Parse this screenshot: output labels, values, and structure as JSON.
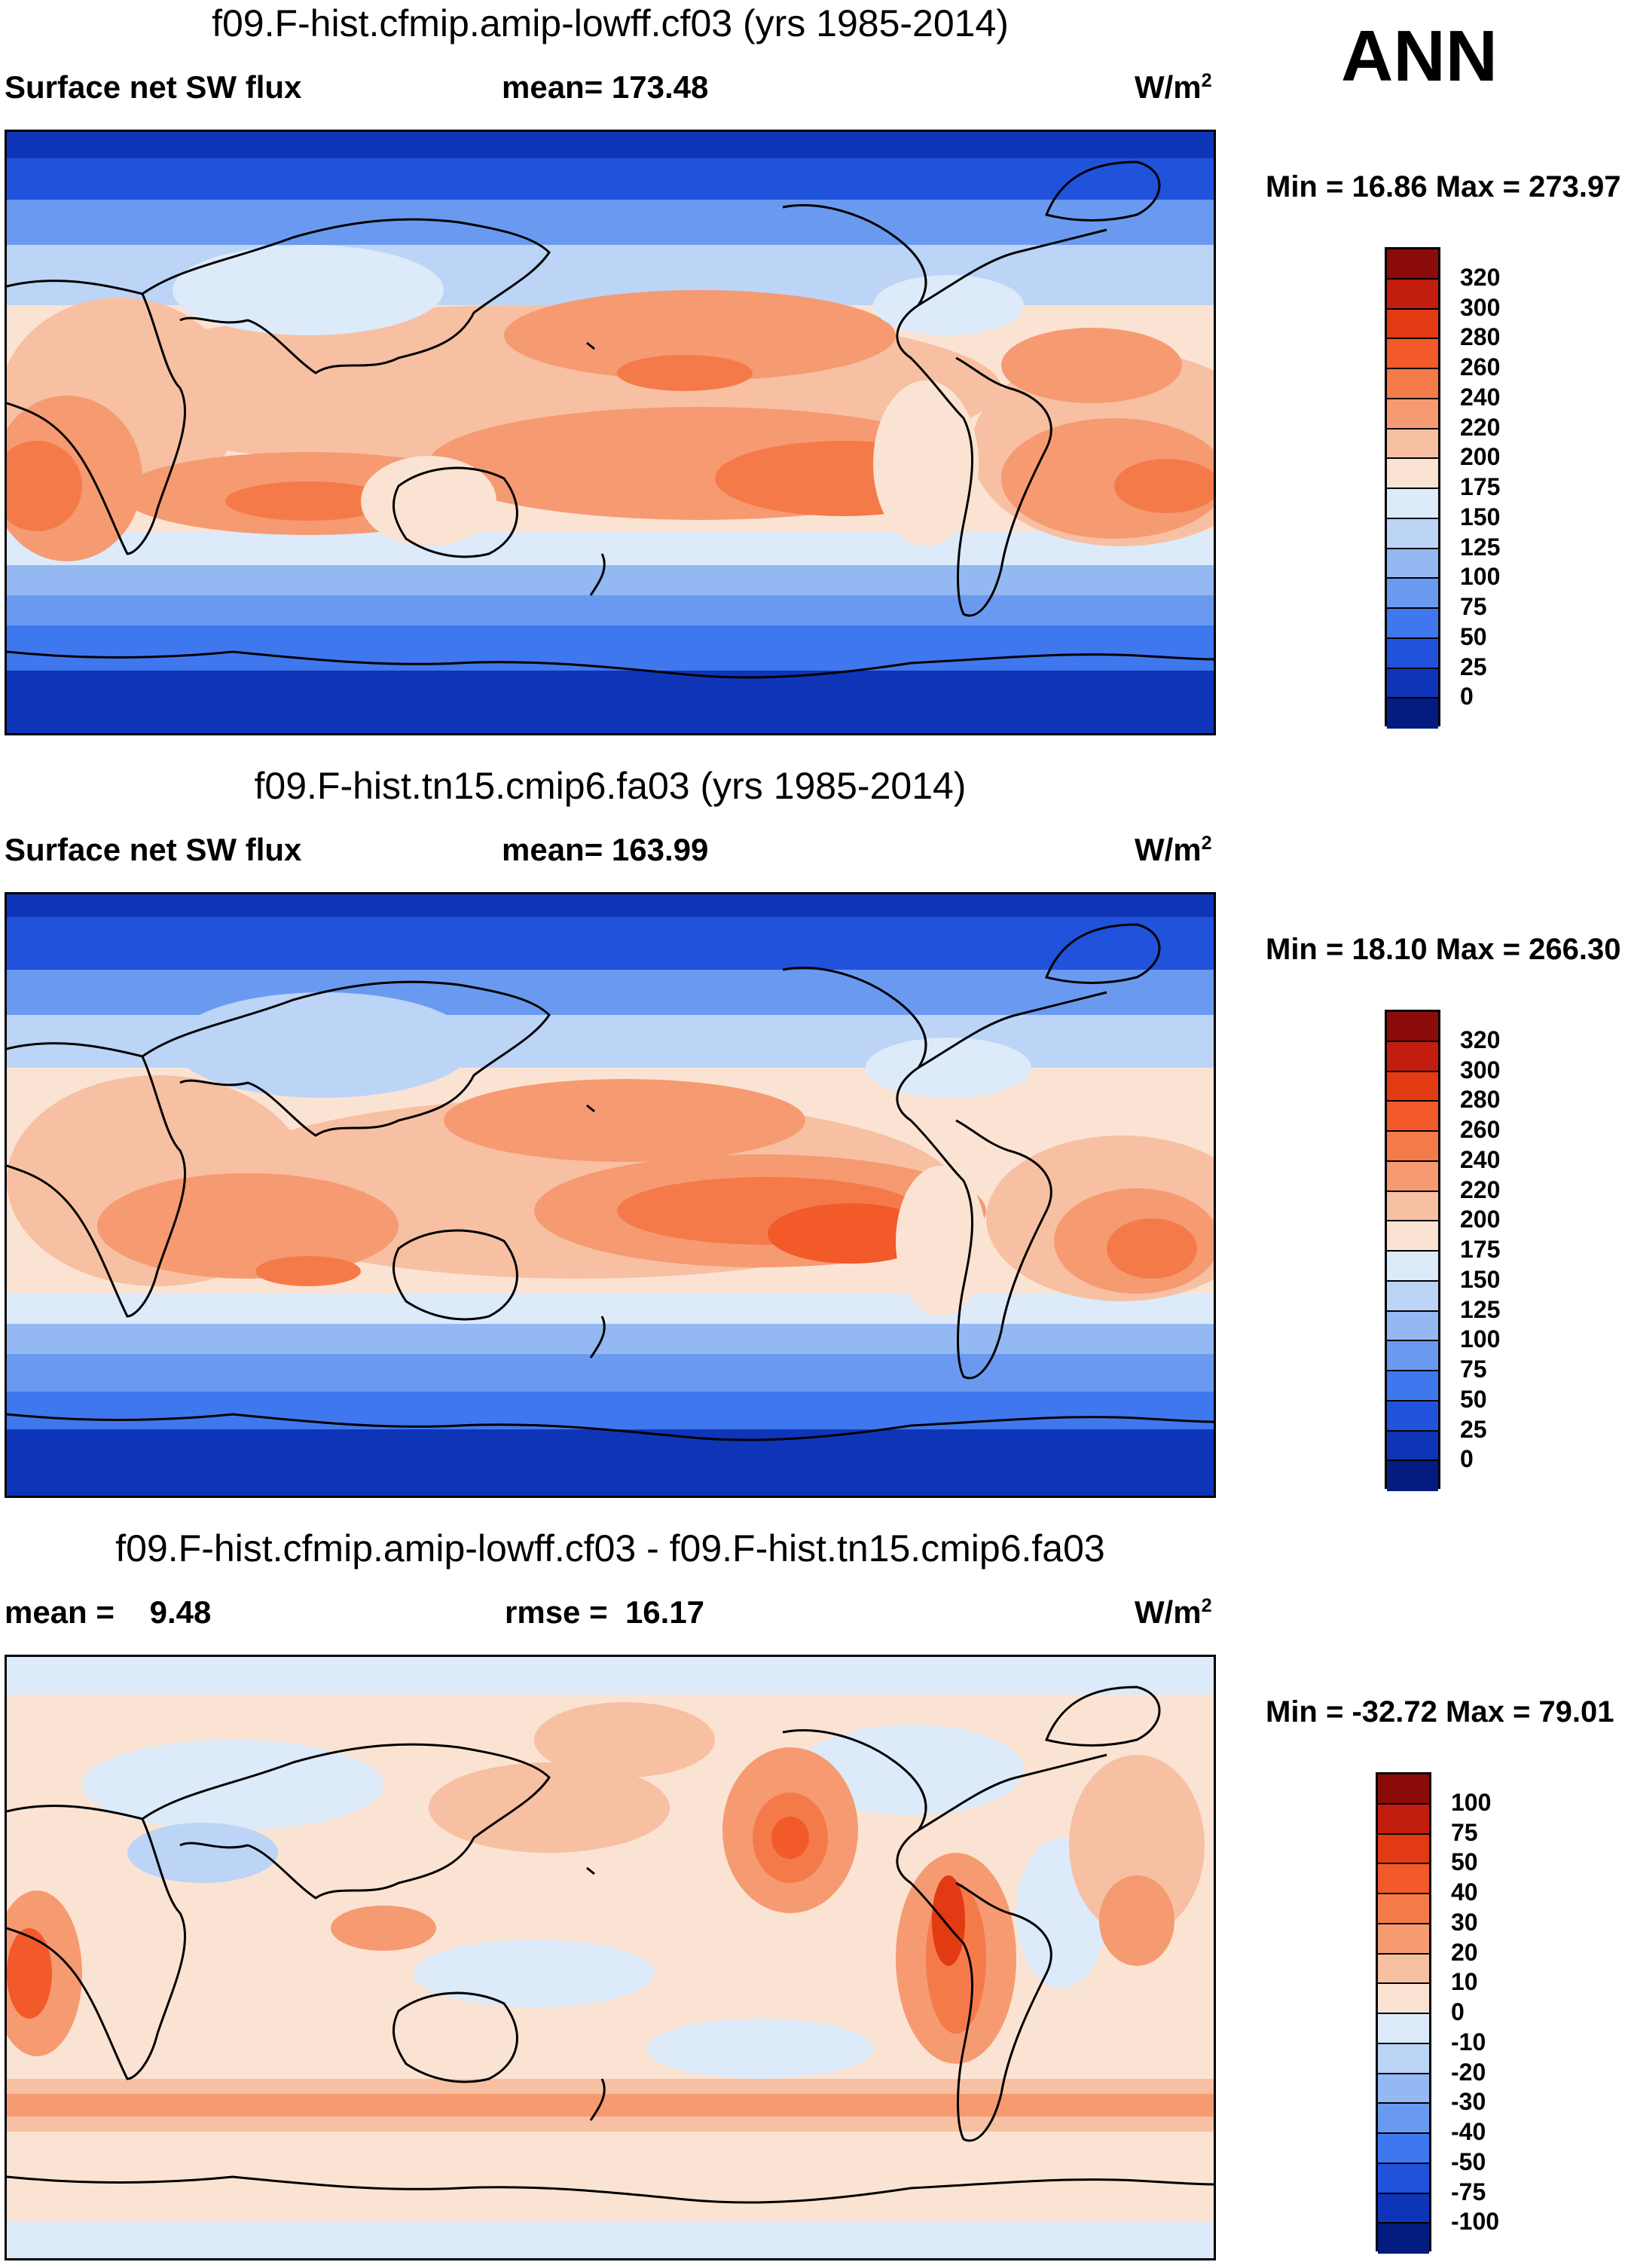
{
  "season": "ANN",
  "panels": [
    {
      "title": "f09.F-hist.cfmip.amip-lowff.cf03 (yrs 1985-2014)",
      "left_label": "Surface net SW flux",
      "center_label": "mean= 173.48",
      "units": "W/m",
      "units_exp": "2",
      "min_label": "Min =",
      "min_value": "16.86",
      "max_label": "Max =",
      "max_value": "273.97",
      "levels": [
        "320",
        "300",
        "280",
        "260",
        "240",
        "220",
        "200",
        "175",
        "150",
        "125",
        "100",
        "75",
        "50",
        "25",
        "0"
      ],
      "colors": [
        "#8b0a0a",
        "#c21d0e",
        "#e23a12",
        "#f25a2a",
        "#f57a4a",
        "#f69a72",
        "#f7c0a2",
        "#fbe3d3",
        "#dceafa",
        "#bcd4f6",
        "#94b8f2",
        "#6a9af0",
        "#3f78ee",
        "#2152dc",
        "#0e35b8",
        "#041c80"
      ]
    },
    {
      "title": "f09.F-hist.tn15.cmip6.fa03 (yrs 1985-2014)",
      "left_label": "Surface net SW flux",
      "center_label": "mean= 163.99",
      "units": "W/m",
      "units_exp": "2",
      "min_label": "Min =",
      "min_value": "18.10",
      "max_label": "Max =",
      "max_value": "266.30",
      "levels": [
        "320",
        "300",
        "280",
        "260",
        "240",
        "220",
        "200",
        "175",
        "150",
        "125",
        "100",
        "75",
        "50",
        "25",
        "0"
      ],
      "colors": [
        "#8b0a0a",
        "#c21d0e",
        "#e23a12",
        "#f25a2a",
        "#f57a4a",
        "#f69a72",
        "#f7c0a2",
        "#fbe3d3",
        "#dceafa",
        "#bcd4f6",
        "#94b8f2",
        "#6a9af0",
        "#3f78ee",
        "#2152dc",
        "#0e35b8",
        "#041c80"
      ]
    },
    {
      "title": "f09.F-hist.cfmip.amip-lowff.cf03 - f09.F-hist.tn15.cmip6.fa03",
      "left_label": "mean =    9.48",
      "center_label": "rmse =  16.17",
      "units": "W/m",
      "units_exp": "2",
      "min_label": "Min =",
      "min_value": "-32.72",
      "max_label": "Max =",
      "max_value": "79.01",
      "levels": [
        "100",
        "75",
        "50",
        "40",
        "30",
        "20",
        "10",
        "0",
        "-10",
        "-20",
        "-30",
        "-40",
        "-50",
        "-75",
        "-100"
      ],
      "colors": [
        "#8b0a0a",
        "#c21d0e",
        "#e23a12",
        "#f25a2a",
        "#f57a4a",
        "#f69a72",
        "#f7c0a2",
        "#fbe3d3",
        "#dceafa",
        "#bcd4f6",
        "#94b8f2",
        "#6a9af0",
        "#3f78ee",
        "#2152dc",
        "#0e35b8",
        "#041c80"
      ]
    }
  ]
}
